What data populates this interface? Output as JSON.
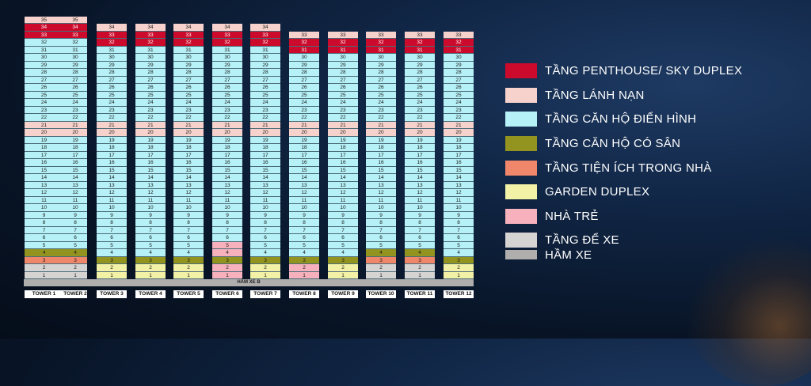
{
  "colors": {
    "penthouse": "#cc0b2c",
    "refuge": "#f7d2cc",
    "typical": "#b5f1f7",
    "garden_floor": "#93941f",
    "amenity": "#f0876a",
    "garden_duplex": "#f3f1a6",
    "kindergarten": "#f6b1bd",
    "parking": "#d6d3d3",
    "basement": "#b0adad"
  },
  "basement_label": "HẦM XE B",
  "towers": [
    {
      "label": "TOWER 1",
      "floors": 35,
      "levels": {
        "35": "refuge",
        "34": "penthouse",
        "33": "penthouse",
        "4": "garden_floor",
        "3": "amenity",
        "2": "parking",
        "1": "parking"
      }
    },
    {
      "label": "TOWER 2",
      "floors": 35,
      "levels": {
        "35": "refuge",
        "34": "penthouse",
        "33": "penthouse",
        "4": "garden_floor",
        "3": "amenity",
        "2": "parking",
        "1": "parking"
      }
    },
    {
      "label": "TOWER 3",
      "floors": 34,
      "levels": {
        "34": "refuge",
        "33": "penthouse",
        "32": "penthouse",
        "3": "garden_floor",
        "2": "garden_duplex",
        "1": "garden_duplex"
      }
    },
    {
      "label": "TOWER 4",
      "floors": 34,
      "levels": {
        "34": "refuge",
        "33": "penthouse",
        "32": "penthouse",
        "3": "garden_floor",
        "2": "garden_duplex",
        "1": "garden_duplex"
      }
    },
    {
      "label": "TOWER 5",
      "floors": 34,
      "levels": {
        "34": "refuge",
        "33": "penthouse",
        "32": "penthouse",
        "3": "garden_floor",
        "2": "garden_duplex",
        "1": "garden_duplex"
      }
    },
    {
      "label": "TOWER 6",
      "floors": 34,
      "levels": {
        "34": "refuge",
        "33": "penthouse",
        "32": "penthouse",
        "5": "kindergarten",
        "4": "kindergarten",
        "3": "garden_floor",
        "2": "kindergarten",
        "1": "kindergarten"
      }
    },
    {
      "label": "TOWER 7",
      "floors": 34,
      "levels": {
        "34": "refuge",
        "33": "penthouse",
        "32": "penthouse",
        "3": "garden_floor",
        "2": "garden_duplex",
        "1": "garden_duplex"
      }
    },
    {
      "label": "TOWER 8",
      "floors": 33,
      "levels": {
        "33": "refuge",
        "32": "penthouse",
        "31": "penthouse",
        "3": "garden_floor",
        "2": "kindergarten",
        "1": "kindergarten"
      }
    },
    {
      "label": "TOWER 9",
      "floors": 33,
      "levels": {
        "33": "refuge",
        "32": "penthouse",
        "31": "penthouse",
        "3": "garden_floor",
        "2": "garden_duplex",
        "1": "garden_duplex"
      }
    },
    {
      "label": "TOWER 10",
      "floors": 33,
      "levels": {
        "33": "refuge",
        "32": "penthouse",
        "31": "penthouse",
        "4": "garden_floor",
        "3": "amenity",
        "2": "parking",
        "1": "parking"
      }
    },
    {
      "label": "TOWER 11",
      "floors": 33,
      "levels": {
        "33": "refuge",
        "32": "penthouse",
        "31": "penthouse",
        "4": "garden_floor",
        "3": "amenity",
        "2": "parking",
        "1": "parking"
      }
    },
    {
      "label": "TOWER 12",
      "floors": 33,
      "levels": {
        "33": "refuge",
        "32": "penthouse",
        "31": "penthouse",
        "3": "garden_floor",
        "2": "garden_duplex",
        "1": "garden_duplex"
      }
    }
  ],
  "refuge_floors": [
    20,
    21
  ],
  "legend": [
    {
      "label": "TẦNG PENTHOUSE/ SKY DUPLEX",
      "color_key": "penthouse"
    },
    {
      "label": "TẦNG LÁNH NẠN",
      "color_key": "refuge"
    },
    {
      "label": "TẦNG CĂN HỘ ĐIỂN HÌNH",
      "color_key": "typical"
    },
    {
      "label": "TẦNG CĂN HỘ CÓ SÂN",
      "color_key": "garden_floor"
    },
    {
      "label": "TẦNG TIỆN ÍCH TRONG NHÀ",
      "color_key": "amenity"
    },
    {
      "label": "GARDEN DUPLEX",
      "color_key": "garden_duplex"
    },
    {
      "label": "NHÀ TRẺ",
      "color_key": "kindergarten"
    },
    {
      "label": "TẦNG ĐỂ XE",
      "color_key": "parking"
    },
    {
      "label": "HẦM XE",
      "color_key": "basement"
    }
  ]
}
